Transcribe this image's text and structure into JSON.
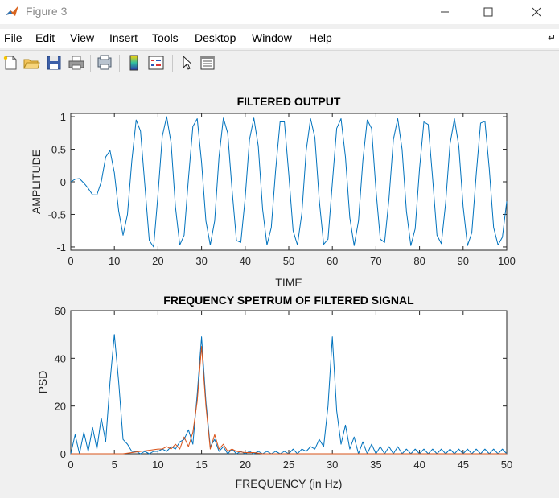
{
  "window": {
    "title": "Figure 3",
    "icon": "matlab-logo-icon"
  },
  "menu": [
    {
      "label": "File",
      "accel": "F",
      "rest": "ile"
    },
    {
      "label": "Edit",
      "accel": "E",
      "rest": "dit"
    },
    {
      "label": "View",
      "accel": "V",
      "rest": "iew"
    },
    {
      "label": "Insert",
      "accel": "I",
      "rest": "nsert"
    },
    {
      "label": "Tools",
      "accel": "T",
      "rest": "ools"
    },
    {
      "label": "Desktop",
      "accel": "D",
      "rest": "esktop"
    },
    {
      "label": "Window",
      "accel": "W",
      "rest": "indow"
    },
    {
      "label": "Help",
      "accel": "H",
      "rest": "elp"
    }
  ],
  "toolbar": [
    "new-figure-icon",
    "open-file-icon",
    "save-icon",
    "print-icon",
    "print-preview-icon",
    "colorbar-icon",
    "legend-icon",
    "pointer-icon",
    "property-editor-icon"
  ],
  "colors": {
    "series1": "#0072bd",
    "series2": "#d95319"
  },
  "chart_data": [
    {
      "type": "line",
      "title": "FILTERED OUTPUT",
      "xlabel": "TIME",
      "ylabel": "AMPLITUDE",
      "xlim": [
        0,
        100
      ],
      "ylim": [
        -1.05,
        1.05
      ],
      "xticks": [
        0,
        10,
        20,
        30,
        40,
        50,
        60,
        70,
        80,
        90,
        100
      ],
      "yticks": [
        -1,
        -0.5,
        0,
        0.5,
        1
      ],
      "ytick_labels": [
        "-1",
        "-0.5",
        "0",
        "0.5",
        "1"
      ],
      "series": [
        {
          "color": "#0072bd",
          "x": [
            0,
            1,
            2,
            3,
            4,
            5,
            6,
            7,
            8,
            9,
            10,
            11,
            12,
            13,
            14,
            15,
            16,
            17,
            18,
            19,
            20,
            21,
            22,
            23,
            24,
            25,
            26,
            27,
            28,
            29,
            30,
            31,
            32,
            33,
            34,
            35,
            36,
            37,
            38,
            39,
            40,
            41,
            42,
            43,
            44,
            45,
            46,
            47,
            48,
            49,
            50,
            51,
            52,
            53,
            54,
            55,
            56,
            57,
            58,
            59,
            60,
            61,
            62,
            63,
            64,
            65,
            66,
            67,
            68,
            69,
            70,
            71,
            72,
            73,
            74,
            75,
            76,
            77,
            78,
            79,
            80,
            81,
            82,
            83,
            84,
            85,
            86,
            87,
            88,
            89,
            90,
            91,
            92,
            93,
            94,
            95,
            96,
            97,
            98,
            99,
            100
          ],
          "values": [
            0,
            0.04,
            0.05,
            -0.02,
            -0.1,
            -0.2,
            -0.2,
            0,
            0.38,
            0.48,
            0.14,
            -0.45,
            -0.82,
            -0.5,
            0.32,
            0.95,
            0.78,
            -0.05,
            -0.9,
            -1.0,
            -0.2,
            0.7,
            1.0,
            0.6,
            -0.38,
            -0.97,
            -0.82,
            0.05,
            0.85,
            0.97,
            0.3,
            -0.6,
            -0.97,
            -0.6,
            0.38,
            0.98,
            0.75,
            -0.12,
            -0.9,
            -0.93,
            -0.25,
            0.65,
            0.98,
            0.55,
            -0.42,
            -0.97,
            -0.7,
            0.18,
            0.92,
            0.92,
            0.12,
            -0.75,
            -0.97,
            -0.48,
            0.48,
            0.97,
            0.68,
            -0.28,
            -0.96,
            -0.88,
            -0.02,
            0.82,
            0.97,
            0.38,
            -0.55,
            -0.98,
            -0.6,
            0.32,
            0.95,
            0.82,
            -0.12,
            -0.88,
            -0.93,
            -0.25,
            0.65,
            0.97,
            0.5,
            -0.45,
            -0.98,
            -0.72,
            0.2,
            0.92,
            0.88,
            0.05,
            -0.82,
            -0.95,
            -0.32,
            0.58,
            0.97,
            0.55,
            -0.38,
            -0.98,
            -0.78,
            0.12,
            0.9,
            0.93,
            0.2,
            -0.7,
            -0.97,
            -0.85,
            -0.3
          ]
        }
      ]
    },
    {
      "type": "line",
      "title": "FREQUENCY SPETRUM OF FILTERED SIGNAL",
      "xlabel": "FREQUENCY (in Hz)",
      "ylabel": "PSD",
      "xlim": [
        0,
        50
      ],
      "ylim": [
        0,
        60
      ],
      "xticks": [
        0,
        5,
        10,
        15,
        20,
        25,
        30,
        35,
        40,
        45,
        50
      ],
      "yticks": [
        0,
        20,
        40,
        60
      ],
      "series": [
        {
          "color": "#0072bd",
          "x": [
            0,
            0.5,
            1,
            1.5,
            2,
            2.5,
            3,
            3.5,
            4,
            4.5,
            5,
            5.5,
            6,
            6.5,
            7,
            7.5,
            8,
            8.5,
            9,
            9.5,
            10,
            10.5,
            11,
            11.5,
            12,
            12.5,
            13,
            13.5,
            14,
            14.5,
            15,
            15.5,
            16,
            16.5,
            17,
            17.5,
            18,
            18.5,
            19,
            19.5,
            20,
            20.5,
            21,
            21.5,
            22,
            22.5,
            23,
            23.5,
            24,
            24.5,
            25,
            25.5,
            26,
            26.5,
            27,
            27.5,
            28,
            28.5,
            29,
            29.5,
            30,
            30.5,
            31,
            31.5,
            32,
            32.5,
            33,
            33.5,
            34,
            34.5,
            35,
            35.5,
            36,
            36.5,
            37,
            37.5,
            38,
            38.5,
            39,
            39.5,
            40,
            40.5,
            41,
            41.5,
            42,
            42.5,
            43,
            43.5,
            44,
            44.5,
            45,
            45.5,
            46,
            46.5,
            47,
            47.5,
            48,
            48.5,
            49,
            49.5,
            50
          ],
          "values": [
            0,
            8,
            0,
            9,
            1,
            11,
            2,
            15,
            5,
            30,
            50,
            30,
            6,
            4,
            1,
            1,
            0,
            1,
            0,
            1,
            1,
            2,
            1,
            3,
            2,
            5,
            6,
            10,
            4,
            25,
            49,
            22,
            3,
            6,
            1,
            3,
            0,
            2,
            0,
            1,
            0,
            1,
            0,
            1,
            0,
            1,
            0,
            1,
            0,
            1,
            0,
            2,
            0,
            2,
            1,
            3,
            2,
            6,
            3,
            20,
            49,
            18,
            4,
            12,
            2,
            7,
            0,
            5,
            0,
            4,
            0,
            3,
            0,
            3,
            0,
            3,
            0,
            2,
            0,
            2,
            0,
            2,
            0,
            2,
            0,
            2,
            0,
            2,
            0,
            2,
            0,
            2,
            0,
            2,
            0,
            2,
            0,
            2,
            0,
            2,
            0
          ]
        },
        {
          "color": "#d95319",
          "x": [
            0,
            1,
            2,
            3,
            4,
            5,
            6,
            7,
            8,
            9,
            10,
            10.5,
            11,
            11.5,
            12,
            12.5,
            13,
            13.5,
            14,
            14.5,
            15,
            15.5,
            16,
            16.5,
            17,
            17.5,
            18,
            18.5,
            19,
            20,
            21,
            22,
            23,
            24,
            25,
            26,
            27,
            28,
            29,
            30,
            31,
            32,
            33,
            34,
            35,
            36,
            37,
            38,
            39,
            40,
            41,
            42,
            43,
            44,
            45,
            46,
            47,
            48,
            49,
            50
          ],
          "values": [
            0,
            0,
            0,
            0,
            0,
            0,
            0,
            0.5,
            1,
            1.5,
            2,
            2,
            3,
            2,
            4,
            2,
            7,
            3,
            9,
            22,
            45,
            20,
            2,
            8,
            2,
            4,
            1,
            2,
            1,
            0.5,
            0.5,
            0,
            0,
            0,
            0,
            0,
            0,
            0,
            0,
            0,
            0,
            0,
            0,
            0,
            0,
            0,
            0,
            0,
            0,
            0,
            0,
            0,
            0,
            0,
            0,
            0,
            0,
            0,
            0,
            0
          ]
        }
      ]
    }
  ]
}
